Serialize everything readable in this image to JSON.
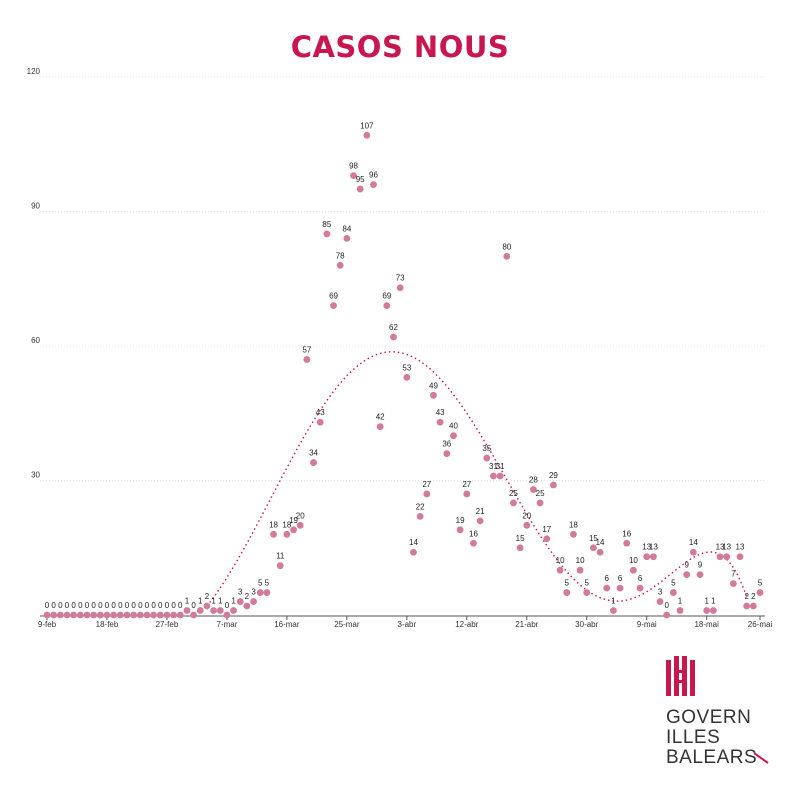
{
  "colors": {
    "accent": "#c8174f",
    "point": "#d17a9a",
    "trend": "#c8174f",
    "grid": "#dcdcdc"
  },
  "logo": {
    "lines": [
      "GOVERN",
      "ILLES",
      "BALEARS"
    ]
  },
  "chart_data": {
    "type": "scatter",
    "title": "CASOS NOUS",
    "ylim": [
      0,
      120
    ],
    "yticks": [
      30,
      60,
      90,
      120
    ],
    "grid": true,
    "x_tick_labels": [
      "9-feb",
      "18-feb",
      "27-feb",
      "7-mar",
      "16-mar",
      "25-mar",
      "3-abr",
      "12-abr",
      "21-abr",
      "30-abr",
      "9-mai",
      "18-mai",
      "26-mai"
    ],
    "x_tick_day_index": [
      0,
      9,
      18,
      27,
      36,
      45,
      54,
      63,
      72,
      81,
      90,
      99,
      107
    ],
    "x_start": "9-feb",
    "series": [
      {
        "values": [
          0,
          0,
          0,
          0,
          0,
          0,
          0,
          0,
          0,
          0,
          0,
          0,
          0,
          0,
          0,
          0,
          0,
          0,
          0,
          0,
          0,
          1,
          0,
          1,
          2,
          1,
          1,
          0,
          1,
          3,
          2,
          3,
          5,
          5,
          18,
          11,
          18,
          19,
          20,
          57,
          34,
          43,
          85,
          69,
          78,
          84,
          98,
          95,
          107,
          96,
          42,
          69,
          62,
          73,
          53,
          14,
          22,
          27,
          49,
          43,
          36,
          40,
          19,
          27,
          16,
          21,
          35,
          31,
          31,
          80,
          25,
          15,
          20,
          28,
          25,
          17,
          29,
          10,
          5,
          18,
          10,
          5,
          15,
          14,
          6,
          1,
          6,
          16,
          10,
          6,
          13,
          13,
          3,
          0,
          5,
          1,
          9,
          14,
          9,
          1,
          1,
          13,
          13,
          7,
          13,
          2,
          2,
          5
        ]
      }
    ],
    "trendline": "dotted polynomial trend"
  }
}
